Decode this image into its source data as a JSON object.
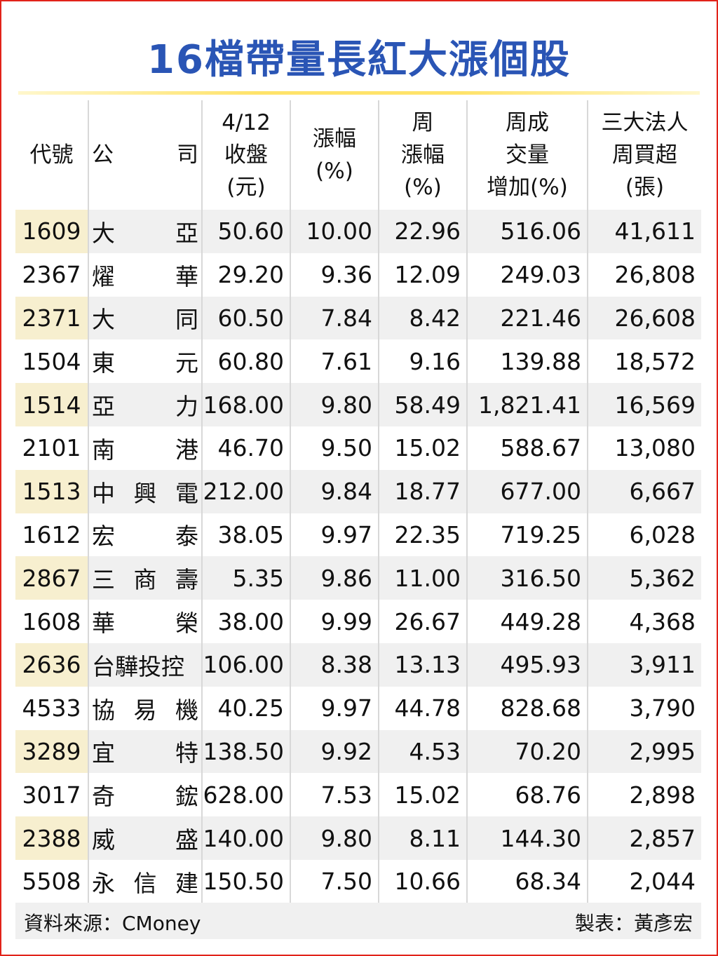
{
  "title": "16檔帶量長紅大漲個股",
  "headers": {
    "code": "代號",
    "company": [
      "公",
      "司"
    ],
    "close": "4/12\n收盤\n(元)",
    "change": "漲幅\n(%)",
    "week_change": "周\n漲幅\n(%)",
    "volume_increase": "周成\n交量\n增加(%)",
    "institutional": "三大法人\n周買超\n(張)"
  },
  "rows": [
    {
      "code": "1609",
      "name": [
        "大",
        "亞"
      ],
      "close": "50.60",
      "change": "10.00",
      "week_change": "22.96",
      "volume": "516.06",
      "inst": "41,611"
    },
    {
      "code": "2367",
      "name": [
        "燿",
        "華"
      ],
      "close": "29.20",
      "change": "9.36",
      "week_change": "12.09",
      "volume": "249.03",
      "inst": "26,808"
    },
    {
      "code": "2371",
      "name": [
        "大",
        "同"
      ],
      "close": "60.50",
      "change": "7.84",
      "week_change": "8.42",
      "volume": "221.46",
      "inst": "26,608"
    },
    {
      "code": "1504",
      "name": [
        "東",
        "元"
      ],
      "close": "60.80",
      "change": "7.61",
      "week_change": "9.16",
      "volume": "139.88",
      "inst": "18,572"
    },
    {
      "code": "1514",
      "name": [
        "亞",
        "力"
      ],
      "close": "168.00",
      "change": "9.80",
      "week_change": "58.49",
      "volume": "1,821.41",
      "inst": "16,569"
    },
    {
      "code": "2101",
      "name": [
        "南",
        "港"
      ],
      "close": "46.70",
      "change": "9.50",
      "week_change": "15.02",
      "volume": "588.67",
      "inst": "13,080"
    },
    {
      "code": "1513",
      "name": [
        "中",
        "興",
        "電"
      ],
      "close": "212.00",
      "change": "9.84",
      "week_change": "18.77",
      "volume": "677.00",
      "inst": "6,667"
    },
    {
      "code": "1612",
      "name": [
        "宏",
        "泰"
      ],
      "close": "38.05",
      "change": "9.97",
      "week_change": "22.35",
      "volume": "719.25",
      "inst": "6,028"
    },
    {
      "code": "2867",
      "name": [
        "三",
        "商",
        "壽"
      ],
      "close": "5.35",
      "change": "9.86",
      "week_change": "11.00",
      "volume": "316.50",
      "inst": "5,362"
    },
    {
      "code": "1608",
      "name": [
        "華",
        "榮"
      ],
      "close": "38.00",
      "change": "9.99",
      "week_change": "26.67",
      "volume": "449.28",
      "inst": "4,368"
    },
    {
      "code": "2636",
      "name": [
        "台驊投控"
      ],
      "close": "106.00",
      "change": "8.38",
      "week_change": "13.13",
      "volume": "495.93",
      "inst": "3,911"
    },
    {
      "code": "4533",
      "name": [
        "協",
        "易",
        "機"
      ],
      "close": "40.25",
      "change": "9.97",
      "week_change": "44.78",
      "volume": "828.68",
      "inst": "3,790"
    },
    {
      "code": "3289",
      "name": [
        "宜",
        "特"
      ],
      "close": "138.50",
      "change": "9.92",
      "week_change": "4.53",
      "volume": "70.20",
      "inst": "2,995"
    },
    {
      "code": "3017",
      "name": [
        "奇",
        "鋐"
      ],
      "close": "628.00",
      "change": "7.53",
      "week_change": "15.02",
      "volume": "68.76",
      "inst": "2,898"
    },
    {
      "code": "2388",
      "name": [
        "威",
        "盛"
      ],
      "close": "140.00",
      "change": "9.80",
      "week_change": "8.11",
      "volume": "144.30",
      "inst": "2,857"
    },
    {
      "code": "5508",
      "name": [
        "永",
        "信",
        "建"
      ],
      "close": "150.50",
      "change": "7.50",
      "week_change": "10.66",
      "volume": "68.34",
      "inst": "2,044"
    }
  ],
  "footer": {
    "source": "資料來源：CMoney",
    "maker": "製表：黃彥宏"
  },
  "colors": {
    "title": "#2a55b5",
    "border": "#e2231a",
    "rule": "#ffe36a",
    "code_highlight": "#f7efcf",
    "row_shade": "#f0f0f0"
  }
}
